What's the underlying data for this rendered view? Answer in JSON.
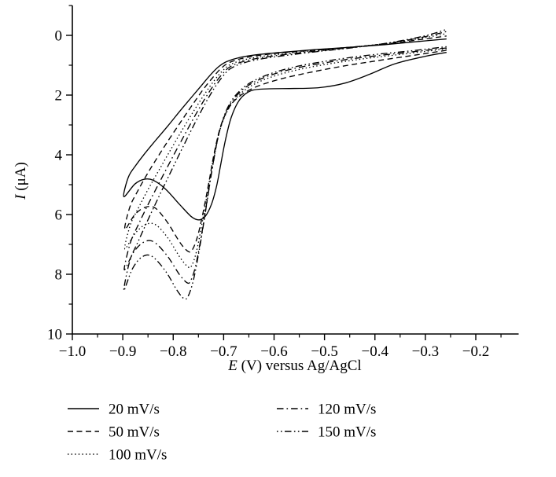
{
  "figure": {
    "background": "#ffffff",
    "ink_color": "#000000"
  },
  "chart_data": {
    "type": "line",
    "subtype": "cyclic-voltammogram",
    "title": "",
    "xlabel": {
      "italic": "E",
      "rest": " (V) versus Ag/AgCl"
    },
    "ylabel": {
      "italic": "I",
      "rest": " (μA)"
    },
    "grid": false,
    "legend_position": "below-plot, two columns",
    "x_axis": {
      "min": -1.0,
      "max": -0.115,
      "major_ticks": [
        -1.0,
        -0.9,
        -0.8,
        -0.7,
        -0.6,
        -0.5,
        -0.4,
        -0.3,
        -0.2
      ],
      "major_tick_labels": [
        "−1.0",
        "−0.9",
        "−0.8",
        "−0.7",
        "−0.6",
        "−0.5",
        "−0.4",
        "−0.3",
        "−0.2"
      ],
      "minor_ticks": [
        -0.95,
        -0.85,
        -0.75,
        -0.65,
        -0.55,
        -0.45,
        -0.35,
        -0.25,
        -0.15
      ]
    },
    "y_axis": {
      "min": -1,
      "max": 10,
      "inverted": true,
      "major_ticks": [
        0,
        2,
        4,
        6,
        8,
        10
      ],
      "major_tick_labels": [
        "0",
        "2",
        "4",
        "6",
        "8",
        "10"
      ],
      "minor_ticks": [
        -1,
        1,
        3,
        5,
        7,
        9
      ]
    },
    "legend_columns": [
      [
        0,
        1,
        2
      ],
      [
        3,
        4
      ]
    ],
    "series": [
      {
        "label": "20 mV/s",
        "style": "solid",
        "peak": {
          "E": -0.749,
          "I": 6.18
        },
        "points": [
          [
            -0.258,
            0.57
          ],
          [
            -0.3,
            0.7
          ],
          [
            -0.36,
            0.95
          ],
          [
            -0.41,
            1.3
          ],
          [
            -0.46,
            1.6
          ],
          [
            -0.51,
            1.75
          ],
          [
            -0.56,
            1.78
          ],
          [
            -0.61,
            1.79
          ],
          [
            -0.645,
            1.85
          ],
          [
            -0.668,
            2.15
          ],
          [
            -0.685,
            2.75
          ],
          [
            -0.697,
            3.55
          ],
          [
            -0.706,
            4.35
          ],
          [
            -0.714,
            5.05
          ],
          [
            -0.724,
            5.65
          ],
          [
            -0.736,
            6.05
          ],
          [
            -0.749,
            6.18
          ],
          [
            -0.764,
            6.07
          ],
          [
            -0.788,
            5.65
          ],
          [
            -0.815,
            5.15
          ],
          [
            -0.84,
            4.85
          ],
          [
            -0.858,
            4.82
          ],
          [
            -0.876,
            4.98
          ],
          [
            -0.898,
            5.4
          ],
          [
            -0.889,
            4.75
          ],
          [
            -0.874,
            4.35
          ],
          [
            -0.856,
            3.95
          ],
          [
            -0.834,
            3.5
          ],
          [
            -0.81,
            3.02
          ],
          [
            -0.786,
            2.52
          ],
          [
            -0.764,
            2.08
          ],
          [
            -0.744,
            1.68
          ],
          [
            -0.726,
            1.32
          ],
          [
            -0.71,
            1.05
          ],
          [
            -0.694,
            0.88
          ],
          [
            -0.668,
            0.74
          ],
          [
            -0.63,
            0.64
          ],
          [
            -0.58,
            0.56
          ],
          [
            -0.52,
            0.48
          ],
          [
            -0.45,
            0.4
          ],
          [
            -0.38,
            0.31
          ],
          [
            -0.31,
            0.2
          ],
          [
            -0.258,
            0.12
          ]
        ]
      },
      {
        "label": "50 mV/s",
        "style": "dashed",
        "peak": {
          "E": -0.77,
          "I": 7.24
        },
        "points": [
          [
            -0.258,
            0.5
          ],
          [
            -0.32,
            0.66
          ],
          [
            -0.4,
            0.86
          ],
          [
            -0.47,
            1.05
          ],
          [
            -0.54,
            1.28
          ],
          [
            -0.6,
            1.52
          ],
          [
            -0.648,
            1.82
          ],
          [
            -0.682,
            2.25
          ],
          [
            -0.703,
            2.9
          ],
          [
            -0.717,
            3.8
          ],
          [
            -0.729,
            4.9
          ],
          [
            -0.741,
            5.95
          ],
          [
            -0.752,
            6.75
          ],
          [
            -0.762,
            7.18
          ],
          [
            -0.77,
            7.24
          ],
          [
            -0.786,
            6.95
          ],
          [
            -0.812,
            6.25
          ],
          [
            -0.836,
            5.78
          ],
          [
            -0.856,
            5.76
          ],
          [
            -0.876,
            6.0
          ],
          [
            -0.896,
            6.5
          ],
          [
            -0.886,
            5.75
          ],
          [
            -0.87,
            5.2
          ],
          [
            -0.85,
            4.6
          ],
          [
            -0.828,
            4.0
          ],
          [
            -0.805,
            3.4
          ],
          [
            -0.782,
            2.82
          ],
          [
            -0.76,
            2.28
          ],
          [
            -0.74,
            1.8
          ],
          [
            -0.722,
            1.42
          ],
          [
            -0.706,
            1.12
          ],
          [
            -0.69,
            0.92
          ],
          [
            -0.663,
            0.77
          ],
          [
            -0.625,
            0.66
          ],
          [
            -0.575,
            0.57
          ],
          [
            -0.515,
            0.49
          ],
          [
            -0.445,
            0.39
          ],
          [
            -0.375,
            0.28
          ],
          [
            -0.305,
            0.13
          ],
          [
            -0.258,
            0.02
          ]
        ]
      },
      {
        "label": "100 mV/s",
        "style": "dotted",
        "peak": {
          "E": -0.77,
          "I": 7.76
        },
        "points": [
          [
            -0.258,
            0.45
          ],
          [
            -0.33,
            0.6
          ],
          [
            -0.42,
            0.78
          ],
          [
            -0.5,
            0.98
          ],
          [
            -0.57,
            1.22
          ],
          [
            -0.625,
            1.52
          ],
          [
            -0.663,
            1.9
          ],
          [
            -0.69,
            2.45
          ],
          [
            -0.708,
            3.2
          ],
          [
            -0.721,
            4.2
          ],
          [
            -0.733,
            5.35
          ],
          [
            -0.744,
            6.4
          ],
          [
            -0.754,
            7.25
          ],
          [
            -0.763,
            7.7
          ],
          [
            -0.77,
            7.76
          ],
          [
            -0.786,
            7.45
          ],
          [
            -0.81,
            6.8
          ],
          [
            -0.834,
            6.35
          ],
          [
            -0.854,
            6.33
          ],
          [
            -0.875,
            6.62
          ],
          [
            -0.896,
            7.15
          ],
          [
            -0.885,
            6.35
          ],
          [
            -0.868,
            5.75
          ],
          [
            -0.848,
            5.1
          ],
          [
            -0.825,
            4.42
          ],
          [
            -0.802,
            3.74
          ],
          [
            -0.779,
            3.08
          ],
          [
            -0.757,
            2.47
          ],
          [
            -0.737,
            1.95
          ],
          [
            -0.719,
            1.52
          ],
          [
            -0.703,
            1.2
          ],
          [
            -0.687,
            0.98
          ],
          [
            -0.66,
            0.82
          ],
          [
            -0.622,
            0.7
          ],
          [
            -0.572,
            0.6
          ],
          [
            -0.512,
            0.5
          ],
          [
            -0.442,
            0.39
          ],
          [
            -0.372,
            0.26
          ],
          [
            -0.302,
            0.08
          ],
          [
            -0.258,
            -0.06
          ]
        ]
      },
      {
        "label": "120 mV/s",
        "style": "dash-dot",
        "peak": {
          "E": -0.772,
          "I": 8.29
        },
        "points": [
          [
            -0.258,
            0.42
          ],
          [
            -0.33,
            0.56
          ],
          [
            -0.42,
            0.73
          ],
          [
            -0.5,
            0.92
          ],
          [
            -0.57,
            1.15
          ],
          [
            -0.625,
            1.45
          ],
          [
            -0.663,
            1.83
          ],
          [
            -0.69,
            2.4
          ],
          [
            -0.708,
            3.2
          ],
          [
            -0.721,
            4.3
          ],
          [
            -0.733,
            5.55
          ],
          [
            -0.745,
            6.8
          ],
          [
            -0.756,
            7.75
          ],
          [
            -0.765,
            8.2
          ],
          [
            -0.772,
            8.29
          ],
          [
            -0.788,
            8.0
          ],
          [
            -0.812,
            7.38
          ],
          [
            -0.838,
            6.92
          ],
          [
            -0.858,
            6.92
          ],
          [
            -0.878,
            7.25
          ],
          [
            -0.897,
            7.85
          ],
          [
            -0.885,
            6.95
          ],
          [
            -0.868,
            6.3
          ],
          [
            -0.848,
            5.6
          ],
          [
            -0.825,
            4.85
          ],
          [
            -0.802,
            4.1
          ],
          [
            -0.779,
            3.38
          ],
          [
            -0.757,
            2.7
          ],
          [
            -0.737,
            2.12
          ],
          [
            -0.719,
            1.65
          ],
          [
            -0.703,
            1.3
          ],
          [
            -0.687,
            1.05
          ],
          [
            -0.66,
            0.87
          ],
          [
            -0.622,
            0.74
          ],
          [
            -0.572,
            0.63
          ],
          [
            -0.512,
            0.52
          ],
          [
            -0.442,
            0.4
          ],
          [
            -0.372,
            0.26
          ],
          [
            -0.302,
            0.05
          ],
          [
            -0.258,
            -0.13
          ]
        ]
      },
      {
        "label": "150 mV/s",
        "style": "dash-dot-dot",
        "peak": {
          "E": -0.778,
          "I": 8.82
        },
        "points": [
          [
            -0.258,
            0.38
          ],
          [
            -0.33,
            0.52
          ],
          [
            -0.42,
            0.68
          ],
          [
            -0.5,
            0.87
          ],
          [
            -0.57,
            1.1
          ],
          [
            -0.625,
            1.4
          ],
          [
            -0.663,
            1.78
          ],
          [
            -0.69,
            2.35
          ],
          [
            -0.708,
            3.2
          ],
          [
            -0.722,
            4.4
          ],
          [
            -0.735,
            5.8
          ],
          [
            -0.748,
            7.15
          ],
          [
            -0.76,
            8.2
          ],
          [
            -0.77,
            8.72
          ],
          [
            -0.778,
            8.82
          ],
          [
            -0.792,
            8.55
          ],
          [
            -0.815,
            7.9
          ],
          [
            -0.842,
            7.4
          ],
          [
            -0.862,
            7.42
          ],
          [
            -0.881,
            7.82
          ],
          [
            -0.898,
            8.55
          ],
          [
            -0.886,
            7.55
          ],
          [
            -0.868,
            6.85
          ],
          [
            -0.848,
            6.1
          ],
          [
            -0.825,
            5.28
          ],
          [
            -0.802,
            4.47
          ],
          [
            -0.779,
            3.68
          ],
          [
            -0.757,
            2.94
          ],
          [
            -0.737,
            2.3
          ],
          [
            -0.719,
            1.78
          ],
          [
            -0.703,
            1.4
          ],
          [
            -0.687,
            1.12
          ],
          [
            -0.66,
            0.92
          ],
          [
            -0.622,
            0.78
          ],
          [
            -0.572,
            0.66
          ],
          [
            -0.512,
            0.54
          ],
          [
            -0.442,
            0.41
          ],
          [
            -0.372,
            0.25
          ],
          [
            -0.302,
            0.02
          ],
          [
            -0.258,
            -0.2
          ]
        ]
      }
    ]
  }
}
